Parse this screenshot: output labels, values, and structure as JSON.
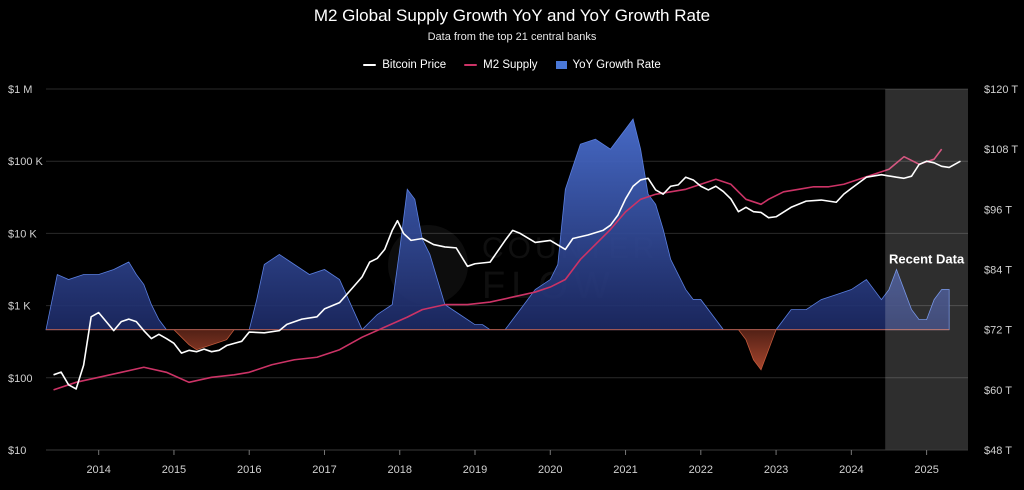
{
  "chart_data": {
    "type": "line+area",
    "title": "M2 Global Supply Growth YoY and YoY Growth Rate",
    "subtitle": "Data from the top 21 central banks",
    "legend": {
      "placement": "top-center"
    },
    "left_axis": {
      "scale": "log",
      "range": [
        10,
        1000000
      ],
      "tick_values": [
        10,
        100,
        1000,
        10000,
        100000,
        1000000
      ],
      "tick_labels": [
        "$10",
        "$100",
        "$1 K",
        "$10 K",
        "$100 K",
        "$1 M"
      ]
    },
    "right_axis": {
      "scale": "linear",
      "unit": "trillions USD",
      "range": [
        48,
        120
      ],
      "tick_values": [
        48,
        60,
        72,
        84,
        96,
        108,
        120
      ],
      "tick_labels": [
        "$48 T",
        "$60 T",
        "$72 T",
        "$84 T",
        "$96 T",
        "$108 T",
        "$120 T"
      ]
    },
    "x_axis": {
      "range": [
        2013.3,
        2025.55
      ],
      "tick_values": [
        2014,
        2015,
        2016,
        2017,
        2018,
        2019,
        2020,
        2021,
        2022,
        2023,
        2024,
        2025
      ],
      "tick_labels": [
        "2014",
        "2015",
        "2016",
        "2017",
        "2018",
        "2019",
        "2020",
        "2021",
        "2022",
        "2023",
        "2024",
        "2025"
      ]
    },
    "growth_rate_baseline_T": 72,
    "series": [
      {
        "name": "Bitcoin Price",
        "axis": "left",
        "color": "#ffffff",
        "style": "line",
        "x": [
          2013.4,
          2013.5,
          2013.6,
          2013.7,
          2013.8,
          2013.9,
          2014.0,
          2014.1,
          2014.2,
          2014.3,
          2014.4,
          2014.5,
          2014.6,
          2014.7,
          2014.8,
          2014.9,
          2015.0,
          2015.1,
          2015.2,
          2015.3,
          2015.4,
          2015.5,
          2015.6,
          2015.7,
          2015.8,
          2015.9,
          2016.0,
          2016.2,
          2016.4,
          2016.5,
          2016.7,
          2016.9,
          2017.0,
          2017.2,
          2017.4,
          2017.5,
          2017.6,
          2017.7,
          2017.8,
          2017.9,
          2017.97,
          2018.05,
          2018.15,
          2018.3,
          2018.45,
          2018.6,
          2018.75,
          2018.9,
          2019.0,
          2019.2,
          2019.4,
          2019.5,
          2019.6,
          2019.8,
          2020.0,
          2020.2,
          2020.3,
          2020.5,
          2020.7,
          2020.8,
          2020.9,
          2021.0,
          2021.1,
          2021.2,
          2021.3,
          2021.4,
          2021.5,
          2021.6,
          2021.7,
          2021.8,
          2021.9,
          2022.0,
          2022.1,
          2022.2,
          2022.3,
          2022.4,
          2022.5,
          2022.6,
          2022.7,
          2022.8,
          2022.9,
          2023.0,
          2023.2,
          2023.4,
          2023.6,
          2023.8,
          2023.9,
          2024.0,
          2024.2,
          2024.4,
          2024.6,
          2024.7,
          2024.8,
          2024.9,
          2025.0,
          2025.1,
          2025.2,
          2025.3,
          2025.45
        ],
        "values": [
          110,
          120,
          80,
          70,
          150,
          700,
          800,
          600,
          450,
          600,
          650,
          600,
          450,
          350,
          400,
          350,
          300,
          220,
          240,
          230,
          250,
          230,
          240,
          280,
          300,
          320,
          430,
          420,
          450,
          550,
          650,
          700,
          900,
          1100,
          1900,
          2500,
          4000,
          4500,
          6000,
          11000,
          15000,
          10000,
          8000,
          8500,
          7000,
          6500,
          6300,
          3500,
          3800,
          4000,
          8000,
          11000,
          10000,
          7500,
          8000,
          6000,
          8500,
          9500,
          11000,
          13000,
          18000,
          30000,
          45000,
          55000,
          58000,
          40000,
          35000,
          45000,
          47000,
          60000,
          55000,
          45000,
          40000,
          45000,
          38000,
          30000,
          20000,
          23000,
          20000,
          19500,
          16500,
          17000,
          23000,
          28000,
          29000,
          27000,
          35000,
          42000,
          60000,
          65000,
          60000,
          58000,
          62000,
          90000,
          100000,
          95000,
          85000,
          82000,
          100000
        ]
      },
      {
        "name": "M2 Supply",
        "axis": "right",
        "unit": "T",
        "color": "#cc3366",
        "style": "line",
        "x": [
          2013.4,
          2013.7,
          2014.0,
          2014.3,
          2014.6,
          2014.9,
          2015.2,
          2015.5,
          2015.8,
          2016.0,
          2016.3,
          2016.6,
          2016.9,
          2017.2,
          2017.5,
          2017.8,
          2018.1,
          2018.3,
          2018.6,
          2018.9,
          2019.2,
          2019.5,
          2019.8,
          2020.0,
          2020.2,
          2020.4,
          2020.6,
          2020.8,
          2021.0,
          2021.2,
          2021.4,
          2021.6,
          2021.8,
          2022.0,
          2022.2,
          2022.4,
          2022.6,
          2022.8,
          2022.9,
          2023.1,
          2023.3,
          2023.5,
          2023.7,
          2023.9,
          2024.1,
          2024.3,
          2024.5,
          2024.7,
          2024.9,
          2025.0,
          2025.1,
          2025.2
        ],
        "values": [
          60,
          61.5,
          62.5,
          63.5,
          64.5,
          63.5,
          61.5,
          62.5,
          63,
          63.5,
          65,
          66,
          66.5,
          68,
          70.5,
          72.5,
          74.5,
          76,
          77,
          77,
          77.5,
          78.5,
          79.5,
          80.5,
          82,
          86,
          89,
          92,
          95.5,
          98,
          99,
          99.5,
          100,
          101,
          102,
          101,
          98,
          97,
          98,
          99.5,
          100,
          100.5,
          100.5,
          101,
          102,
          103,
          104,
          106.5,
          105,
          105.5,
          106,
          108
        ]
      },
      {
        "name": "YoY Growth Rate",
        "axis": "right",
        "unit": "T (offset from 72 T baseline)",
        "positive_color": "#3e64c9",
        "negative_color": "#8a3a2e",
        "style": "area",
        "x": [
          2013.3,
          2013.45,
          2013.6,
          2013.8,
          2014.0,
          2014.2,
          2014.4,
          2014.5,
          2014.6,
          2014.7,
          2014.8,
          2014.9,
          2015.0,
          2015.2,
          2015.3,
          2015.5,
          2015.6,
          2015.7,
          2015.8,
          2016.0,
          2016.1,
          2016.2,
          2016.4,
          2016.6,
          2016.8,
          2017.0,
          2017.2,
          2017.35,
          2017.5,
          2017.7,
          2017.9,
          2018.0,
          2018.1,
          2018.2,
          2018.3,
          2018.4,
          2018.6,
          2018.8,
          2019.0,
          2019.1,
          2019.2,
          2019.4,
          2019.6,
          2019.8,
          2020.0,
          2020.1,
          2020.2,
          2020.4,
          2020.6,
          2020.8,
          2021.0,
          2021.1,
          2021.2,
          2021.3,
          2021.4,
          2021.5,
          2021.6,
          2021.8,
          2021.9,
          2022.0,
          2022.2,
          2022.3,
          2022.4,
          2022.5,
          2022.6,
          2022.7,
          2022.8,
          2022.9,
          2023.0,
          2023.1,
          2023.2,
          2023.4,
          2023.6,
          2023.8,
          2024.0,
          2024.1,
          2024.2,
          2024.3,
          2024.4,
          2024.5,
          2024.6,
          2024.7,
          2024.8,
          2024.9,
          2025.0,
          2025.1,
          2025.2,
          2025.3
        ],
        "values": [
          0,
          11,
          10,
          11,
          11,
          12,
          13.5,
          11,
          9,
          5,
          2,
          0,
          0,
          -3,
          -4,
          -3,
          -2.5,
          -2,
          0,
          0,
          6,
          13,
          15,
          13,
          11,
          12,
          10,
          5,
          0,
          3,
          5,
          16,
          28,
          26,
          18,
          15,
          5,
          3,
          1,
          1,
          0,
          0,
          4,
          8,
          10,
          13,
          28,
          37,
          38,
          36,
          40,
          42,
          36,
          27,
          25,
          20,
          14,
          8,
          6,
          6,
          2,
          0,
          0,
          0,
          -2,
          -6,
          -8,
          -4,
          0,
          2,
          4,
          4,
          6,
          7,
          8,
          9,
          10,
          8,
          6,
          8,
          12,
          8,
          4,
          2,
          2,
          6,
          8,
          8
        ]
      }
    ],
    "annotations": [
      {
        "text": "Recent Data",
        "type": "shaded_region",
        "x_range": [
          2024.45,
          2025.55
        ]
      }
    ],
    "watermark": "COUNTER FLOW"
  }
}
